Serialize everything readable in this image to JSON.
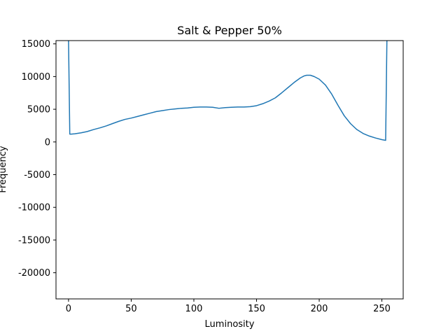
{
  "chart_data": {
    "type": "line",
    "title": "Salt & Pepper 50%",
    "xlabel": "Luminosity",
    "ylabel": "Frequency",
    "xlim": [
      -10,
      267
    ],
    "ylim": [
      -24000,
      15500
    ],
    "xticks": [
      0,
      50,
      100,
      150,
      200,
      250
    ],
    "yticks": [
      -20000,
      -15000,
      -10000,
      -5000,
      0,
      5000,
      10000,
      15000
    ],
    "grid": false,
    "line_color": "#1f77b4",
    "series": [
      {
        "name": "",
        "x": [
          0,
          1,
          2,
          5,
          10,
          15,
          20,
          25,
          30,
          35,
          40,
          45,
          50,
          55,
          60,
          65,
          70,
          75,
          80,
          85,
          90,
          95,
          100,
          105,
          110,
          115,
          120,
          125,
          130,
          135,
          140,
          145,
          150,
          155,
          160,
          165,
          170,
          175,
          180,
          185,
          188,
          190,
          193,
          196,
          200,
          205,
          210,
          215,
          220,
          225,
          230,
          235,
          240,
          245,
          250,
          253,
          254
        ],
        "y": [
          15500,
          1200,
          1200,
          1250,
          1400,
          1600,
          1900,
          2150,
          2450,
          2800,
          3150,
          3450,
          3650,
          3900,
          4150,
          4400,
          4650,
          4800,
          4950,
          5050,
          5150,
          5200,
          5300,
          5350,
          5350,
          5300,
          5150,
          5250,
          5300,
          5350,
          5350,
          5400,
          5550,
          5850,
          6250,
          6750,
          7500,
          8300,
          9100,
          9800,
          10100,
          10200,
          10200,
          10000,
          9600,
          8700,
          7300,
          5600,
          4000,
          2800,
          1900,
          1300,
          900,
          600,
          350,
          250,
          15500
        ]
      }
    ]
  }
}
